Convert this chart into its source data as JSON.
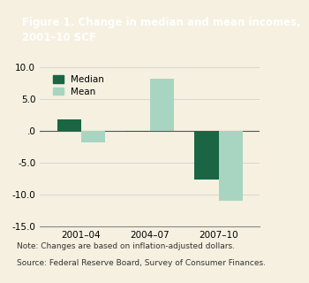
{
  "title": "Figure 1. Change in median and mean incomes,\n2001–10 SCF",
  "title_bg_color": "#2d6b4f",
  "title_text_color": "#ffffff",
  "plot_bg_color": "#f5f0e0",
  "figure_bg_color": "#f5f0e0",
  "categories": [
    "2001–04",
    "2004–07",
    "2007–10"
  ],
  "median_values": [
    1.8,
    -0.2,
    -7.7
  ],
  "mean_values": [
    -1.8,
    8.2,
    -11.0
  ],
  "median_color": "#1a6644",
  "mean_color": "#a8d5c2",
  "ylim": [
    -15.0,
    10.0
  ],
  "yticks": [
    -15.0,
    -10.0,
    -5.0,
    0.0,
    5.0,
    10.0
  ],
  "bar_width": 0.35,
  "legend_labels": [
    "Median",
    "Mean"
  ],
  "note_line1": "Note: Changes are based on inflation-adjusted dollars.",
  "note_line2": "Source: Federal Reserve Board, Survey of Consumer Finances.",
  "note_fontsize": 6.5,
  "axis_fontsize": 7.5,
  "legend_fontsize": 7.5,
  "title_fontsize": 8.5
}
